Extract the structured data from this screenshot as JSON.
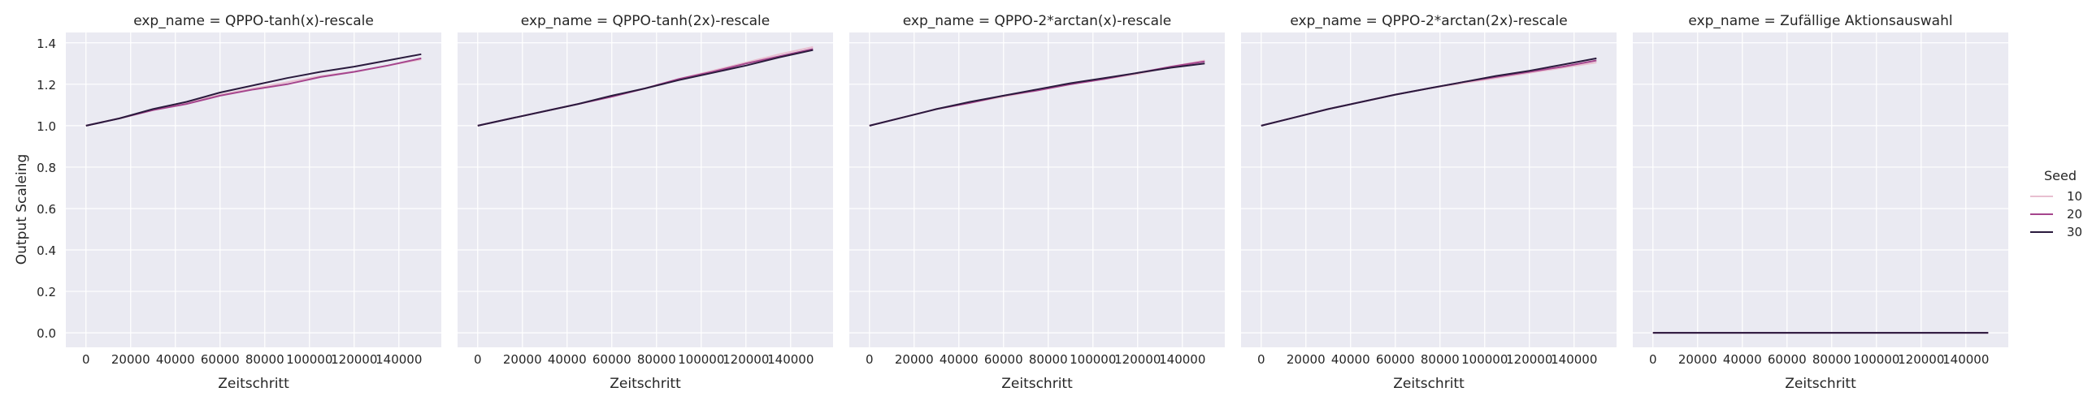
{
  "chart_data": {
    "type": "line",
    "ylabel": "Output Scaleing",
    "xlabel": "Zeitschritt",
    "xlim": [
      -9000,
      159000
    ],
    "ylim": [
      -0.07,
      1.45
    ],
    "x_ticks": [
      0,
      20000,
      40000,
      60000,
      80000,
      100000,
      120000,
      140000
    ],
    "x_tick_labels": [
      "0",
      "20000",
      "40000",
      "60000",
      "80000",
      "100000",
      "120000",
      "140000"
    ],
    "y_ticks": [
      0.0,
      0.2,
      0.4,
      0.6,
      0.8,
      1.0,
      1.2,
      1.4
    ],
    "y_tick_labels": [
      "0.0",
      "0.2",
      "0.4",
      "0.6",
      "0.8",
      "1.0",
      "1.2",
      "1.4"
    ],
    "grid": true,
    "legend": {
      "title": "Seed",
      "position": "right",
      "entries": [
        {
          "label": "10",
          "color": "#e8bfd0"
        },
        {
          "label": "20",
          "color": "#a5458d"
        },
        {
          "label": "30",
          "color": "#2a1a3d"
        }
      ]
    },
    "x": [
      0,
      15000,
      30000,
      45000,
      60000,
      75000,
      90000,
      105000,
      120000,
      135000,
      150000
    ],
    "panels": [
      {
        "title": "exp_name = QPPO-tanh(x)-rescale",
        "series": [
          {
            "name": "10",
            "values": [
              1.0,
              1.035,
              1.075,
              1.11,
              1.15,
              1.18,
              1.21,
              1.24,
              1.26,
              1.29,
              1.32
            ]
          },
          {
            "name": "20",
            "values": [
              1.0,
              1.035,
              1.075,
              1.105,
              1.145,
              1.175,
              1.2,
              1.235,
              1.26,
              1.29,
              1.325
            ]
          },
          {
            "name": "30",
            "values": [
              1.0,
              1.035,
              1.08,
              1.115,
              1.16,
              1.195,
              1.23,
              1.26,
              1.285,
              1.315,
              1.345
            ]
          }
        ]
      },
      {
        "title": "exp_name = QPPO-tanh(2x)-rescale",
        "series": [
          {
            "name": "10",
            "values": [
              1.0,
              1.035,
              1.07,
              1.105,
              1.14,
              1.18,
              1.225,
              1.265,
              1.305,
              1.345,
              1.38
            ]
          },
          {
            "name": "20",
            "values": [
              1.0,
              1.035,
              1.07,
              1.105,
              1.14,
              1.18,
              1.225,
              1.26,
              1.3,
              1.335,
              1.37
            ]
          },
          {
            "name": "30",
            "values": [
              1.0,
              1.035,
              1.07,
              1.105,
              1.145,
              1.18,
              1.22,
              1.255,
              1.29,
              1.33,
              1.365
            ]
          }
        ]
      },
      {
        "title": "exp_name = QPPO-2*arctan(x)-rescale",
        "series": [
          {
            "name": "10",
            "values": [
              1.0,
              1.04,
              1.08,
              1.11,
              1.14,
              1.17,
              1.2,
              1.225,
              1.25,
              1.285,
              1.315
            ]
          },
          {
            "name": "20",
            "values": [
              1.0,
              1.04,
              1.08,
              1.11,
              1.145,
              1.17,
              1.2,
              1.225,
              1.255,
              1.285,
              1.31
            ]
          },
          {
            "name": "30",
            "values": [
              1.0,
              1.04,
              1.08,
              1.115,
              1.145,
              1.175,
              1.205,
              1.23,
              1.255,
              1.28,
              1.3
            ]
          }
        ]
      },
      {
        "title": "exp_name = QPPO-2*arctan(2x)-rescale",
        "series": [
          {
            "name": "10",
            "values": [
              1.0,
              1.04,
              1.08,
              1.115,
              1.15,
              1.18,
              1.205,
              1.23,
              1.255,
              1.28,
              1.305
            ]
          },
          {
            "name": "20",
            "values": [
              1.0,
              1.04,
              1.08,
              1.115,
              1.15,
              1.18,
              1.21,
              1.235,
              1.26,
              1.285,
              1.315
            ]
          },
          {
            "name": "30",
            "values": [
              1.0,
              1.04,
              1.08,
              1.115,
              1.15,
              1.18,
              1.21,
              1.24,
              1.265,
              1.295,
              1.325
            ]
          }
        ]
      },
      {
        "title": "exp_name = Zufällige Aktionsauswahl",
        "series": [
          {
            "name": "10",
            "values": [
              0,
              0,
              0,
              0,
              0,
              0,
              0,
              0,
              0,
              0,
              0
            ]
          },
          {
            "name": "20",
            "values": [
              0,
              0,
              0,
              0,
              0,
              0,
              0,
              0,
              0,
              0,
              0
            ]
          },
          {
            "name": "30",
            "values": [
              0,
              0,
              0,
              0,
              0,
              0,
              0,
              0,
              0,
              0,
              0
            ]
          }
        ]
      }
    ]
  }
}
